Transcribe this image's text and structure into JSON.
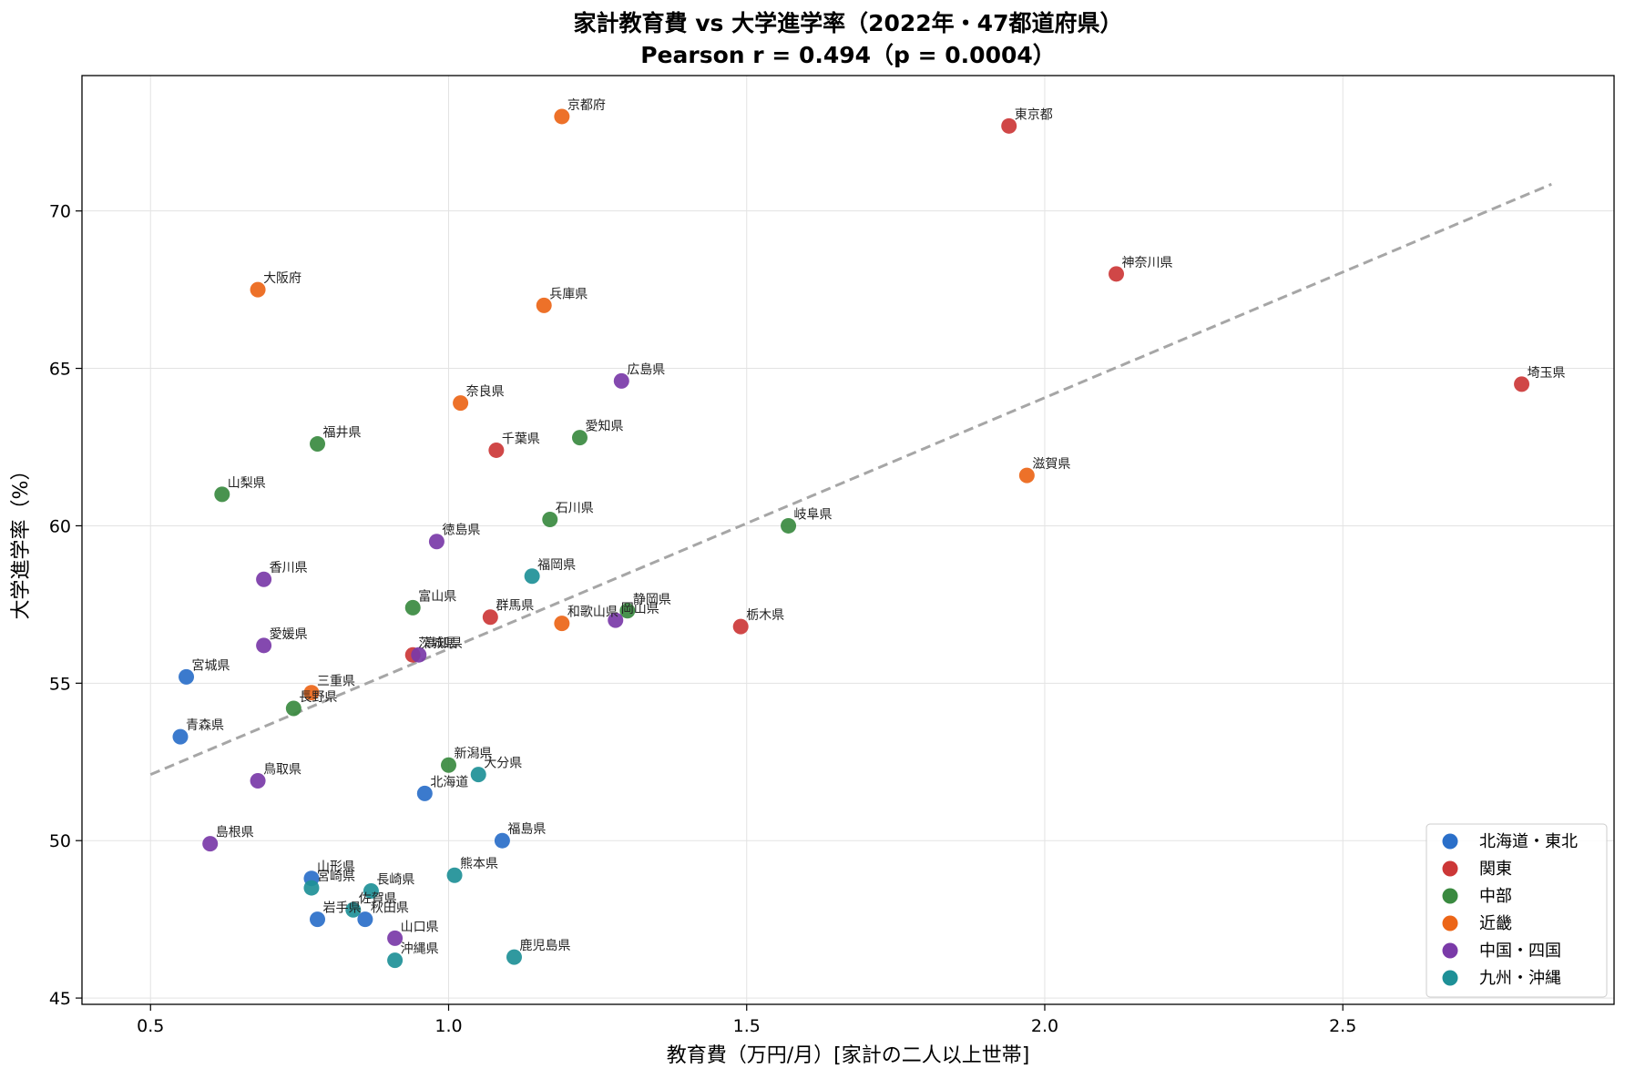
{
  "chart_data": {
    "type": "scatter",
    "title": "家計教育費 vs 大学進学率（2022年・47都道府県）",
    "subtitle": "Pearson r = 0.494（p = 0.0004）",
    "xlabel": "教育費（万円/月）[家計の二人以上世帯]",
    "ylabel": "大学進学率（%）",
    "xlim": [
      0.385,
      2.955
    ],
    "ylim": [
      44.8,
      74.3
    ],
    "xticks": [
      0.5,
      1.0,
      1.5,
      2.0,
      2.5
    ],
    "xtick_labels": [
      "0.5",
      "1.0",
      "1.5",
      "2.0",
      "2.5"
    ],
    "yticks": [
      45,
      50,
      55,
      60,
      65,
      70
    ],
    "ytick_labels": [
      "45",
      "50",
      "55",
      "60",
      "65",
      "70"
    ],
    "grid": true,
    "legend_position": "bottom-right",
    "trendline": {
      "x": [
        0.5,
        2.85
      ],
      "y": [
        52.1,
        70.85
      ],
      "color": "#a6a6a6",
      "style": "dashed"
    },
    "series": [
      {
        "name": "北海道・東北",
        "color": "#2a6fc9",
        "points": [
          {
            "label": "北海道",
            "x": 0.96,
            "y": 51.5
          },
          {
            "label": "青森県",
            "x": 0.55,
            "y": 53.3
          },
          {
            "label": "岩手県",
            "x": 0.78,
            "y": 47.5
          },
          {
            "label": "宮城県",
            "x": 0.56,
            "y": 55.2
          },
          {
            "label": "秋田県",
            "x": 0.86,
            "y": 47.5
          },
          {
            "label": "山形県",
            "x": 0.77,
            "y": 48.8
          },
          {
            "label": "福島県",
            "x": 1.09,
            "y": 50.0
          }
        ]
      },
      {
        "name": "関東",
        "color": "#cc3737",
        "points": [
          {
            "label": "茨城県",
            "x": 0.94,
            "y": 55.9
          },
          {
            "label": "栃木県",
            "x": 1.49,
            "y": 56.8
          },
          {
            "label": "群馬県",
            "x": 1.07,
            "y": 57.1
          },
          {
            "label": "埼玉県",
            "x": 2.8,
            "y": 64.5
          },
          {
            "label": "千葉県",
            "x": 1.08,
            "y": 62.4
          },
          {
            "label": "東京都",
            "x": 1.94,
            "y": 72.7
          },
          {
            "label": "神奈川県",
            "x": 2.12,
            "y": 68.0
          }
        ]
      },
      {
        "name": "中部",
        "color": "#3a8a40",
        "points": [
          {
            "label": "新潟県",
            "x": 1.0,
            "y": 52.4
          },
          {
            "label": "富山県",
            "x": 0.94,
            "y": 57.4
          },
          {
            "label": "石川県",
            "x": 1.17,
            "y": 60.2
          },
          {
            "label": "福井県",
            "x": 0.78,
            "y": 62.6
          },
          {
            "label": "山梨県",
            "x": 0.62,
            "y": 61.0
          },
          {
            "label": "長野県",
            "x": 0.74,
            "y": 54.2
          },
          {
            "label": "岐阜県",
            "x": 1.57,
            "y": 60.0
          },
          {
            "label": "静岡県",
            "x": 1.3,
            "y": 57.3
          },
          {
            "label": "愛知県",
            "x": 1.22,
            "y": 62.8
          }
        ]
      },
      {
        "name": "近畿",
        "color": "#ec6517",
        "points": [
          {
            "label": "三重県",
            "x": 0.77,
            "y": 54.7
          },
          {
            "label": "滋賀県",
            "x": 1.97,
            "y": 61.6
          },
          {
            "label": "京都府",
            "x": 1.19,
            "y": 73.0
          },
          {
            "label": "大阪府",
            "x": 0.68,
            "y": 67.5
          },
          {
            "label": "兵庫県",
            "x": 1.16,
            "y": 67.0
          },
          {
            "label": "奈良県",
            "x": 1.02,
            "y": 63.9
          },
          {
            "label": "和歌山県",
            "x": 1.19,
            "y": 56.9
          }
        ]
      },
      {
        "name": "中国・四国",
        "color": "#7a3aa8",
        "points": [
          {
            "label": "鳥取県",
            "x": 0.68,
            "y": 51.9
          },
          {
            "label": "島根県",
            "x": 0.6,
            "y": 49.9
          },
          {
            "label": "岡山県",
            "x": 1.28,
            "y": 57.0
          },
          {
            "label": "広島県",
            "x": 1.29,
            "y": 64.6
          },
          {
            "label": "山口県",
            "x": 0.91,
            "y": 46.9
          },
          {
            "label": "徳島県",
            "x": 0.98,
            "y": 59.5
          },
          {
            "label": "香川県",
            "x": 0.69,
            "y": 58.3
          },
          {
            "label": "愛媛県",
            "x": 0.69,
            "y": 56.2
          },
          {
            "label": "高知県",
            "x": 0.95,
            "y": 55.9
          }
        ]
      },
      {
        "name": "九州・沖縄",
        "color": "#1e9097",
        "points": [
          {
            "label": "福岡県",
            "x": 1.14,
            "y": 58.4
          },
          {
            "label": "佐賀県",
            "x": 0.84,
            "y": 47.8
          },
          {
            "label": "長崎県",
            "x": 0.87,
            "y": 48.4
          },
          {
            "label": "熊本県",
            "x": 1.01,
            "y": 48.9
          },
          {
            "label": "大分県",
            "x": 1.05,
            "y": 52.1
          },
          {
            "label": "宮崎県",
            "x": 0.77,
            "y": 48.5
          },
          {
            "label": "鹿児島県",
            "x": 1.11,
            "y": 46.3
          },
          {
            "label": "沖縄県",
            "x": 0.91,
            "y": 46.2
          }
        ]
      }
    ]
  }
}
